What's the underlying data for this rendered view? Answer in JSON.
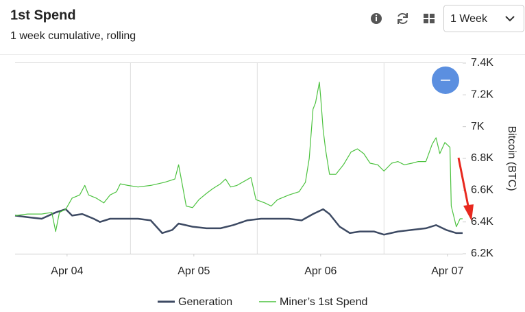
{
  "header": {
    "title": "1st Spend",
    "subtitle": "1 week cumulative, rolling",
    "period": "1 Week"
  },
  "chart_data": {
    "type": "line",
    "y_label": "Bitcoin (BTC)",
    "xlim": [
      -0.41,
      3.12
    ],
    "xticks": [
      {
        "value": 0,
        "label": "Apr 04"
      },
      {
        "value": 1,
        "label": "Apr 05"
      },
      {
        "value": 2,
        "label": "Apr 06"
      },
      {
        "value": 3,
        "label": "Apr 07"
      }
    ],
    "xgrid": [
      0.5,
      1.5,
      2.5
    ],
    "ylim": [
      6200,
      7400
    ],
    "yticks": [
      {
        "value": 6200,
        "label": "6.2K"
      },
      {
        "value": 6400,
        "label": "6.4K"
      },
      {
        "value": 6600,
        "label": "6.6K"
      },
      {
        "value": 6800,
        "label": "6.8K"
      },
      {
        "value": 7000,
        "label": "7K"
      },
      {
        "value": 7200,
        "label": "7.2K"
      },
      {
        "value": 7400,
        "label": "7.4K"
      }
    ],
    "series": [
      {
        "name": "Generation",
        "color": "#3d4a63",
        "x": [
          -0.41,
          -0.31,
          -0.2,
          -0.09,
          -0.01,
          0.04,
          0.12,
          0.21,
          0.26,
          0.34,
          0.45,
          0.56,
          0.66,
          0.75,
          0.83,
          0.88,
          0.99,
          1.1,
          1.21,
          1.31,
          1.42,
          1.53,
          1.64,
          1.75,
          1.85,
          1.94,
          2.02,
          2.07,
          2.15,
          2.23,
          2.31,
          2.42,
          2.5,
          2.61,
          2.72,
          2.83,
          2.91,
          2.99,
          3.07,
          3.12
        ],
        "values": [
          6440,
          6430,
          6420,
          6460,
          6480,
          6440,
          6450,
          6420,
          6400,
          6420,
          6420,
          6420,
          6410,
          6330,
          6350,
          6390,
          6370,
          6360,
          6360,
          6380,
          6410,
          6420,
          6420,
          6420,
          6410,
          6450,
          6480,
          6450,
          6370,
          6330,
          6340,
          6340,
          6320,
          6340,
          6350,
          6360,
          6380,
          6350,
          6330,
          6330
        ]
      },
      {
        "name": "Miner’s 1st Spend",
        "color": "#4cc23f",
        "x": [
          -0.41,
          -0.31,
          -0.2,
          -0.12,
          -0.09,
          -0.06,
          -0.01,
          0.04,
          0.1,
          0.14,
          0.17,
          0.23,
          0.29,
          0.34,
          0.39,
          0.42,
          0.48,
          0.56,
          0.66,
          0.77,
          0.85,
          0.88,
          0.91,
          0.94,
          0.99,
          1.04,
          1.1,
          1.15,
          1.21,
          1.25,
          1.29,
          1.34,
          1.45,
          1.49,
          1.56,
          1.61,
          1.66,
          1.75,
          1.83,
          1.88,
          1.91,
          1.94,
          1.96,
          1.99,
          2.0,
          2.02,
          2.04,
          2.07,
          2.12,
          2.18,
          2.24,
          2.29,
          2.34,
          2.39,
          2.45,
          2.5,
          2.56,
          2.61,
          2.66,
          2.72,
          2.77,
          2.83,
          2.88,
          2.91,
          2.94,
          2.98,
          3.02,
          3.03,
          3.07,
          3.1,
          3.12
        ],
        "values": [
          6440,
          6450,
          6450,
          6460,
          6340,
          6460,
          6480,
          6550,
          6570,
          6630,
          6570,
          6550,
          6520,
          6570,
          6590,
          6640,
          6630,
          6620,
          6630,
          6650,
          6670,
          6760,
          6630,
          6500,
          6490,
          6540,
          6580,
          6610,
          6640,
          6670,
          6620,
          6630,
          6680,
          6540,
          6520,
          6500,
          6540,
          6570,
          6590,
          6650,
          6800,
          7110,
          7150,
          7280,
          7190,
          6980,
          6850,
          6700,
          6700,
          6760,
          6840,
          6860,
          6830,
          6770,
          6760,
          6720,
          6770,
          6780,
          6760,
          6770,
          6780,
          6780,
          6890,
          6930,
          6830,
          6900,
          6870,
          6500,
          6370,
          6420,
          6420
        ]
      }
    ]
  }
}
